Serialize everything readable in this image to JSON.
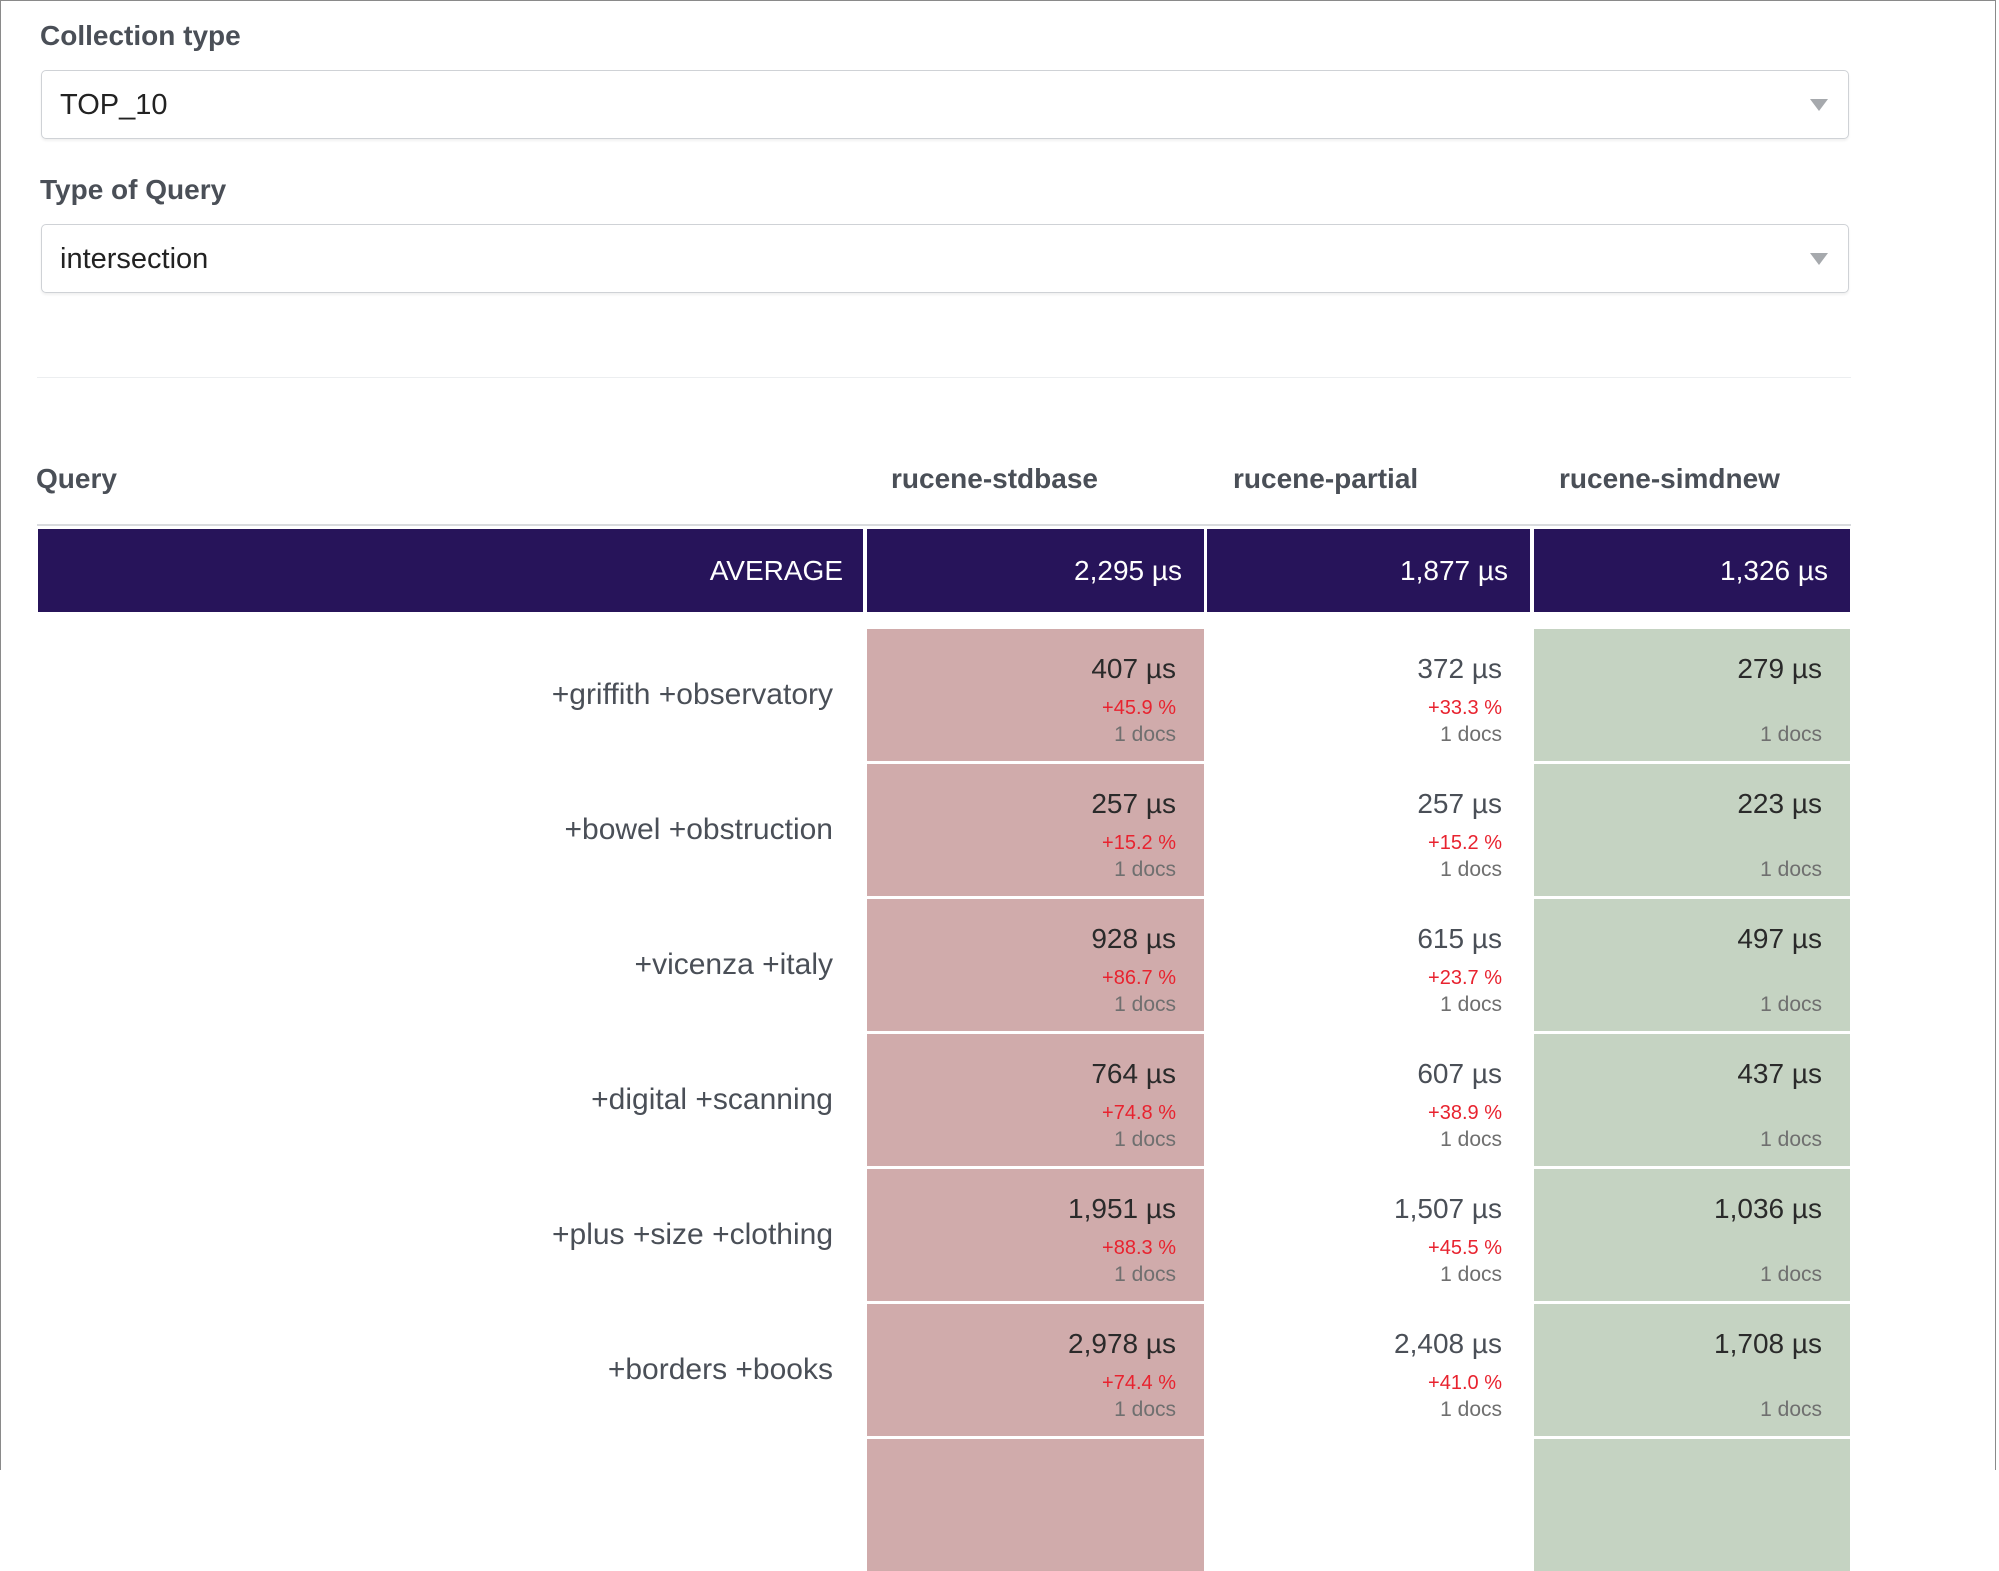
{
  "filters": {
    "collection_label": "Collection type",
    "collection_value": "TOP_10",
    "query_type_label": "Type of Query",
    "query_type_value": "intersection"
  },
  "table": {
    "headers": [
      "Query",
      "rucene-stdbase",
      "rucene-partial",
      "rucene-simdnew"
    ],
    "average": {
      "label": "AVERAGE",
      "values": [
        "2,295 µs",
        "1,877 µs",
        "1,326 µs"
      ]
    },
    "rows": [
      {
        "query": "+griffith +observatory",
        "cells": [
          {
            "time": "407 µs",
            "pct": "+45.9 %",
            "docs": "1 docs",
            "status": "slower"
          },
          {
            "time": "372 µs",
            "pct": "+33.3 %",
            "docs": "1 docs",
            "status": "neutral"
          },
          {
            "time": "279 µs",
            "pct": "",
            "docs": "1 docs",
            "status": "fastest"
          }
        ]
      },
      {
        "query": "+bowel +obstruction",
        "cells": [
          {
            "time": "257 µs",
            "pct": "+15.2 %",
            "docs": "1 docs",
            "status": "slower"
          },
          {
            "time": "257 µs",
            "pct": "+15.2 %",
            "docs": "1 docs",
            "status": "neutral"
          },
          {
            "time": "223 µs",
            "pct": "",
            "docs": "1 docs",
            "status": "fastest"
          }
        ]
      },
      {
        "query": "+vicenza +italy",
        "cells": [
          {
            "time": "928 µs",
            "pct": "+86.7 %",
            "docs": "1 docs",
            "status": "slower"
          },
          {
            "time": "615 µs",
            "pct": "+23.7 %",
            "docs": "1 docs",
            "status": "neutral"
          },
          {
            "time": "497 µs",
            "pct": "",
            "docs": "1 docs",
            "status": "fastest"
          }
        ]
      },
      {
        "query": "+digital +scanning",
        "cells": [
          {
            "time": "764 µs",
            "pct": "+74.8 %",
            "docs": "1 docs",
            "status": "slower"
          },
          {
            "time": "607 µs",
            "pct": "+38.9 %",
            "docs": "1 docs",
            "status": "neutral"
          },
          {
            "time": "437 µs",
            "pct": "",
            "docs": "1 docs",
            "status": "fastest"
          }
        ]
      },
      {
        "query": "+plus +size +clothing",
        "cells": [
          {
            "time": "1,951 µs",
            "pct": "+88.3 %",
            "docs": "1 docs",
            "status": "slower"
          },
          {
            "time": "1,507 µs",
            "pct": "+45.5 %",
            "docs": "1 docs",
            "status": "neutral"
          },
          {
            "time": "1,036 µs",
            "pct": "",
            "docs": "1 docs",
            "status": "fastest"
          }
        ]
      },
      {
        "query": "+borders +books",
        "cells": [
          {
            "time": "2,978 µs",
            "pct": "+74.4 %",
            "docs": "1 docs",
            "status": "slower"
          },
          {
            "time": "2,408 µs",
            "pct": "+41.0 %",
            "docs": "1 docs",
            "status": "neutral"
          },
          {
            "time": "1,708 µs",
            "pct": "",
            "docs": "1 docs",
            "status": "fastest"
          }
        ]
      }
    ]
  },
  "colors": {
    "average_bg": "#27145a",
    "slower_bg": "#d0abab",
    "fastest_bg": "#c5d3c2",
    "pct_text": "#e8232f"
  }
}
